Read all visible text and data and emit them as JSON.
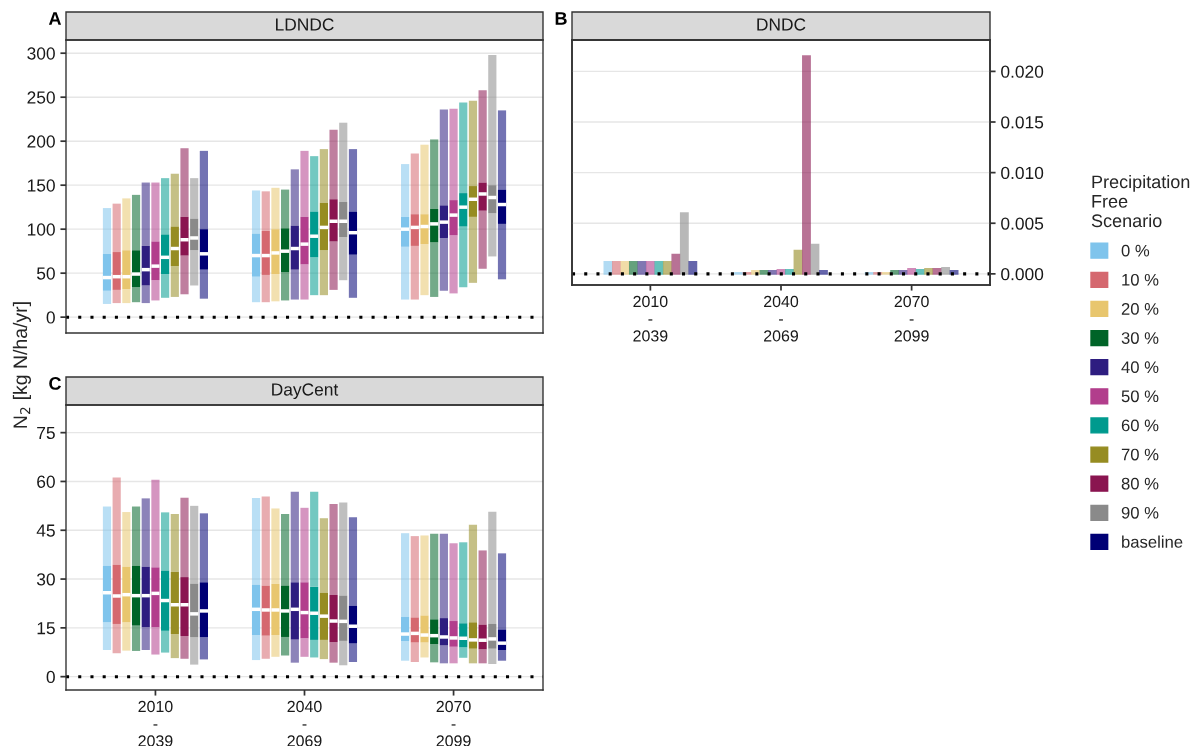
{
  "chart_data": [
    {
      "type": "box",
      "title": "LDNDC",
      "ylabel": "N$_{2}$ [kg N/ha/yr]",
      "annotations": [
        "A"
      ],
      "categories": [
        null,
        null,
        null
      ],
      "ylim": [
        -18,
        315
      ],
      "yticks": [
        0,
        50,
        100,
        150,
        200,
        250,
        300
      ],
      "grid": "y",
      "tick_labels": "y",
      "ref_lines": [
        {
          "axis": "y",
          "value": 0,
          "color": "#000000",
          "line_style": "dotted"
        }
      ],
      "series": [
        {
          "color": "#7fc4ec",
          "boxes": [
            {
              "low": 15,
              "q1": 30,
              "median": 45,
              "q3": 72,
              "high": 124
            },
            {
              "low": 17,
              "q1": 46,
              "median": 70,
              "q3": 95,
              "high": 144
            },
            {
              "low": 20,
              "q1": 80,
              "median": 100,
              "q3": 114,
              "high": 174
            }
          ]
        },
        {
          "color": "#d5686f",
          "boxes": [
            {
              "low": 16,
              "q1": 31,
              "median": 46,
              "q3": 74,
              "high": 129
            },
            {
              "low": 17,
              "q1": 48,
              "median": 70,
              "q3": 98,
              "high": 143
            },
            {
              "low": 20,
              "q1": 81,
              "median": 102,
              "q3": 117,
              "high": 186
            }
          ]
        },
        {
          "color": "#e8c66e",
          "boxes": [
            {
              "low": 16,
              "q1": 32,
              "median": 46,
              "q3": 76,
              "high": 135
            },
            {
              "low": 18,
              "q1": 49,
              "median": 73,
              "q3": 100,
              "high": 147
            },
            {
              "low": 25,
              "q1": 83,
              "median": 103,
              "q3": 117,
              "high": 196
            }
          ]
        },
        {
          "color": "#006428",
          "boxes": [
            {
              "low": 17,
              "q1": 34,
              "median": 49,
              "q3": 76,
              "high": 139
            },
            {
              "low": 19,
              "q1": 51,
              "median": 75,
              "q3": 101,
              "high": 145
            },
            {
              "low": 23,
              "q1": 85,
              "median": 106,
              "q3": 123,
              "high": 202
            }
          ]
        },
        {
          "color": "#2e1d80",
          "boxes": [
            {
              "low": 16,
              "q1": 36,
              "median": 54,
              "q3": 81,
              "high": 153
            },
            {
              "low": 20,
              "q1": 54,
              "median": 78,
              "q3": 104,
              "high": 168
            },
            {
              "low": 30,
              "q1": 90,
              "median": 108,
              "q3": 127,
              "high": 236
            }
          ]
        },
        {
          "color": "#b23e8c",
          "boxes": [
            {
              "low": 19,
              "q1": 42,
              "median": 58,
              "q3": 86,
              "high": 153
            },
            {
              "low": 20,
              "q1": 60,
              "median": 83,
              "q3": 114,
              "high": 189
            },
            {
              "low": 27,
              "q1": 93,
              "median": 116,
              "q3": 133,
              "high": 237
            }
          ]
        },
        {
          "color": "#009a8e",
          "boxes": [
            {
              "low": 22,
              "q1": 49,
              "median": 68,
              "q3": 94,
              "high": 158
            },
            {
              "low": 25,
              "q1": 68,
              "median": 92,
              "q3": 120,
              "high": 183
            },
            {
              "low": 34,
              "q1": 103,
              "median": 125,
              "q3": 141,
              "high": 244
            }
          ]
        },
        {
          "color": "#968c22",
          "boxes": [
            {
              "low": 23,
              "q1": 58,
              "median": 78,
              "q3": 103,
              "high": 163
            },
            {
              "low": 25,
              "q1": 76,
              "median": 102,
              "q3": 130,
              "high": 191
            },
            {
              "low": 39,
              "q1": 114,
              "median": 134,
              "q3": 149,
              "high": 246
            }
          ]
        },
        {
          "color": "#8a1550",
          "boxes": [
            {
              "low": 26,
              "q1": 70,
              "median": 88,
              "q3": 114,
              "high": 192
            },
            {
              "low": 31,
              "q1": 86,
              "median": 109,
              "q3": 134,
              "high": 213
            },
            {
              "low": 55,
              "q1": 121,
              "median": 140,
              "q3": 153,
              "high": 258
            }
          ]
        },
        {
          "color": "#8a8a8a",
          "boxes": [
            {
              "low": 36,
              "q1": 76,
              "median": 90,
              "q3": 112,
              "high": 158
            },
            {
              "low": 42,
              "q1": 91,
              "median": 109,
              "q3": 131,
              "high": 221
            },
            {
              "low": 69,
              "q1": 118,
              "median": 136,
              "q3": 150,
              "high": 298
            }
          ]
        },
        {
          "color": "#000075",
          "boxes": [
            {
              "low": 21,
              "q1": 54,
              "median": 72,
              "q3": 100,
              "high": 189
            },
            {
              "low": 22,
              "q1": 71,
              "median": 96,
              "q3": 120,
              "high": 191
            },
            {
              "low": 43,
              "q1": 106,
              "median": 128,
              "q3": 145,
              "high": 235
            }
          ]
        }
      ]
    },
    {
      "type": "bar",
      "title": "DNDC",
      "annotations": [
        "B"
      ],
      "categories": [
        "2010\n-\n2039",
        "2040\n-\n2069",
        "2070\n-\n2099"
      ],
      "y2lim": [
        -0.0011,
        0.0231
      ],
      "y2ticks": [
        {
          "value": 0,
          "label": "0.000"
        },
        {
          "value": 0.005,
          "label": "0.005"
        },
        {
          "value": 0.01,
          "label": "0.010"
        },
        {
          "value": 0.015,
          "label": "0.015"
        },
        {
          "value": 0.02,
          "label": "0.020"
        }
      ],
      "grid": "y",
      "legend": "right",
      "legend_title": "Precipitation\nFree\nScenario",
      "ref_lines": [
        {
          "axis": "y2",
          "value": 0,
          "color": "#000000",
          "line_style": "dotted"
        }
      ],
      "series": [
        {
          "name": "0 %",
          "color": "#7fc4ec",
          "axis": "y2",
          "values": [
            0.0012,
            0.0001,
            0.0001
          ]
        },
        {
          "name": "10 %",
          "color": "#d5686f",
          "axis": "y2",
          "values": [
            0.0012,
            0.0001,
            0.0001
          ]
        },
        {
          "name": "20 %",
          "color": "#e8c66e",
          "axis": "y2",
          "values": [
            0.0012,
            0.0003,
            0.0001
          ]
        },
        {
          "name": "30 %",
          "color": "#006428",
          "axis": "y2",
          "values": [
            0.0012,
            0.0003,
            0.0003
          ]
        },
        {
          "name": "40 %",
          "color": "#2e1d80",
          "axis": "y2",
          "values": [
            0.0012,
            0.0003,
            0.0003
          ]
        },
        {
          "name": "50 %",
          "color": "#b23e8c",
          "axis": "y2",
          "values": [
            0.0012,
            0.0004,
            0.0005
          ]
        },
        {
          "name": "60 %",
          "color": "#009a8e",
          "axis": "y2",
          "values": [
            0.0012,
            0.0004,
            0.0004
          ]
        },
        {
          "name": "70 %",
          "color": "#968c22",
          "axis": "y2",
          "values": [
            0.0012,
            0.0023,
            0.0005
          ]
        },
        {
          "name": "80 %",
          "color": "#8a1550",
          "axis": "y2",
          "values": [
            0.0019,
            0.0215,
            0.0005
          ]
        },
        {
          "name": "90 %",
          "color": "#8a8a8a",
          "axis": "y2",
          "values": [
            0.006,
            0.0029,
            0.0006
          ]
        },
        {
          "name": "baseline",
          "color": "#000075",
          "axis": "y2",
          "values": [
            0.0012,
            0.0003,
            0.0003
          ]
        }
      ]
    },
    {
      "type": "box",
      "title": "DayCent",
      "annotations": [
        "C"
      ],
      "categories": [
        "2010\n-\n2039",
        "2040\n-\n2069",
        "2070\n-\n2099"
      ],
      "ylim": [
        -4.1,
        83.5
      ],
      "yticks": [
        0,
        15,
        30,
        45,
        60,
        75
      ],
      "grid": "y",
      "ref_lines": [
        {
          "axis": "y",
          "value": 0,
          "color": "#000000",
          "line_style": "dotted"
        }
      ],
      "series": [
        {
          "color": "#7fc4ec",
          "boxes": [
            {
              "low": 8.2,
              "q1": 16.7,
              "median": 25.8,
              "q3": 34.1,
              "high": 52.3
            },
            {
              "low": 5.1,
              "q1": 12.8,
              "median": 20.7,
              "q3": 28.3,
              "high": 54.9
            },
            {
              "low": 4.9,
              "q1": 10.9,
              "median": 13.1,
              "q3": 18.4,
              "high": 44.1
            }
          ]
        },
        {
          "color": "#d5686f",
          "boxes": [
            {
              "low": 7.2,
              "q1": 16.2,
              "median": 24.8,
              "q3": 34.4,
              "high": 61.2
            },
            {
              "low": 5.5,
              "q1": 12.6,
              "median": 20.5,
              "q3": 28.0,
              "high": 55.4
            },
            {
              "low": 4.5,
              "q1": 10.5,
              "median": 13.3,
              "q3": 18.2,
              "high": 43.2
            }
          ]
        },
        {
          "color": "#e8c66e",
          "boxes": [
            {
              "low": 8.0,
              "q1": 16.7,
              "median": 25.2,
              "q3": 33.8,
              "high": 50.6
            },
            {
              "low": 6.1,
              "q1": 12.8,
              "median": 20.5,
              "q3": 28.5,
              "high": 51.7
            },
            {
              "low": 5.9,
              "q1": 10.5,
              "median": 12.8,
              "q3": 18.8,
              "high": 43.4
            }
          ]
        },
        {
          "color": "#006428",
          "boxes": [
            {
              "low": 7.9,
              "q1": 15.7,
              "median": 24.9,
              "q3": 34.1,
              "high": 52.3
            },
            {
              "low": 6.5,
              "q1": 12.2,
              "median": 20.2,
              "q3": 28.0,
              "high": 50.0
            },
            {
              "low": 4.4,
              "q1": 10.0,
              "median": 12.6,
              "q3": 17.6,
              "high": 43.9
            }
          ]
        },
        {
          "color": "#2e1d80",
          "boxes": [
            {
              "low": 8.2,
              "q1": 15.2,
              "median": 24.9,
              "q3": 33.8,
              "high": 54.8
            },
            {
              "low": 4.3,
              "q1": 11.4,
              "median": 20.7,
              "q3": 29.0,
              "high": 56.8
            },
            {
              "low": 4.1,
              "q1": 9.6,
              "median": 12.2,
              "q3": 18.0,
              "high": 43.9
            }
          ]
        },
        {
          "color": "#b23e8c",
          "boxes": [
            {
              "low": 6.8,
              "q1": 15.2,
              "median": 25.6,
              "q3": 33.6,
              "high": 60.5
            },
            {
              "low": 6.1,
              "q1": 11.8,
              "median": 19.7,
              "q3": 29.0,
              "high": 51.9
            },
            {
              "low": 4.1,
              "q1": 9.2,
              "median": 11.9,
              "q3": 17.1,
              "high": 41.0
            }
          ]
        },
        {
          "color": "#009a8e",
          "boxes": [
            {
              "low": 7.4,
              "q1": 14.1,
              "median": 23.4,
              "q3": 32.6,
              "high": 50.5
            },
            {
              "low": 5.9,
              "q1": 11.3,
              "median": 19.5,
              "q3": 27.6,
              "high": 56.8
            },
            {
              "low": 5.8,
              "q1": 9.0,
              "median": 11.8,
              "q3": 16.4,
              "high": 41.3
            }
          ]
        },
        {
          "color": "#968c22",
          "boxes": [
            {
              "low": 5.7,
              "q1": 13.1,
              "median": 22.1,
              "q3": 32.2,
              "high": 50.0
            },
            {
              "low": 5.4,
              "q1": 11.3,
              "median": 18.6,
              "q3": 25.8,
              "high": 48.7
            },
            {
              "low": 4.1,
              "q1": 8.6,
              "median": 11.3,
              "q3": 16.7,
              "high": 46.7
            }
          ]
        },
        {
          "color": "#8a1550",
          "boxes": [
            {
              "low": 5.5,
              "q1": 12.5,
              "median": 22.1,
              "q3": 30.6,
              "high": 55.0
            },
            {
              "low": 4.3,
              "q1": 10.6,
              "median": 17.1,
              "q3": 25.1,
              "high": 53.1
            },
            {
              "low": 4.1,
              "q1": 8.4,
              "median": 11.2,
              "q3": 16.0,
              "high": 38.8
            }
          ]
        },
        {
          "color": "#8a8a8a",
          "boxes": [
            {
              "low": 3.7,
              "q1": 12.1,
              "median": 19.3,
              "q3": 28.6,
              "high": 52.5
            },
            {
              "low": 3.5,
              "q1": 11.0,
              "median": 17.0,
              "q3": 24.9,
              "high": 53.5
            },
            {
              "low": 3.9,
              "q1": 8.6,
              "median": 11.6,
              "q3": 16.2,
              "high": 50.7
            }
          ]
        },
        {
          "color": "#000075",
          "boxes": [
            {
              "low": 5.3,
              "q1": 12.1,
              "median": 20.2,
              "q3": 29.0,
              "high": 50.2
            },
            {
              "low": 4.5,
              "q1": 10.2,
              "median": 15.5,
              "q3": 21.8,
              "high": 49.0
            },
            {
              "low": 4.9,
              "q1": 8.2,
              "median": 10.3,
              "q3": 14.5,
              "high": 37.9
            }
          ]
        }
      ]
    }
  ]
}
